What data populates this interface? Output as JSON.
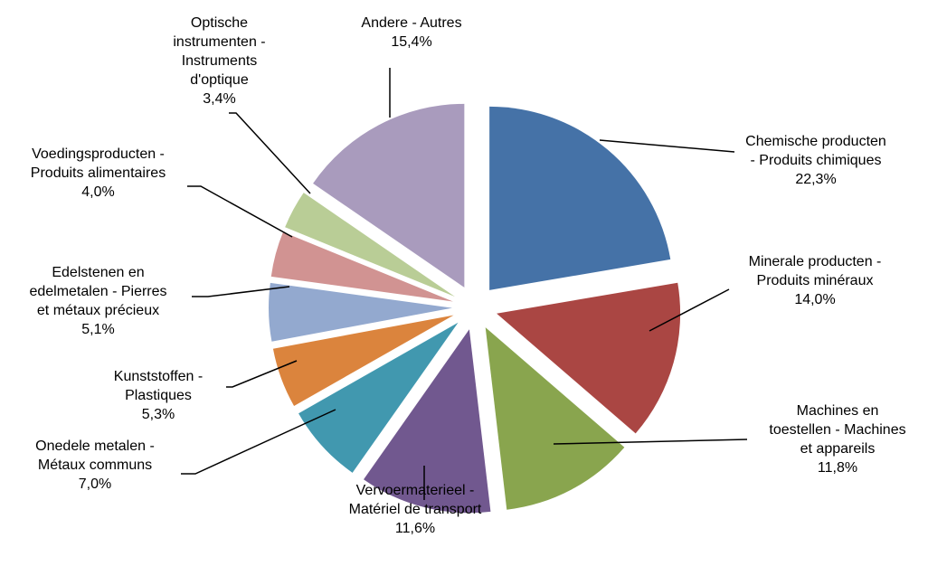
{
  "chart_data": {
    "type": "pie",
    "title": "",
    "legend": "none",
    "series": [
      {
        "name": "",
        "slices": [
          {
            "label_lines": [
              "Chemische producten",
              "- Produits chimiques"
            ],
            "value_label": "22,3%",
            "value": 22.3,
            "color": "#4572A7"
          },
          {
            "label_lines": [
              "Minerale producten -",
              "Produits minéraux"
            ],
            "value_label": "14,0%",
            "value": 14.0,
            "color": "#AA4643"
          },
          {
            "label_lines": [
              "Machines en",
              "toestellen - Machines",
              "et appareils"
            ],
            "value_label": "11,8%",
            "value": 11.8,
            "color": "#89A54E"
          },
          {
            "label_lines": [
              "Vervoermaterieel -",
              "Matériel de transport"
            ],
            "value_label": "11,6%",
            "value": 11.6,
            "color": "#71588F"
          },
          {
            "label_lines": [
              "Onedele metalen -",
              "Métaux communs"
            ],
            "value_label": "7,0%",
            "value": 7.0,
            "color": "#4198AF"
          },
          {
            "label_lines": [
              "Kunststoffen -",
              "Plastiques"
            ],
            "value_label": "5,3%",
            "value": 5.3,
            "color": "#DB843D"
          },
          {
            "label_lines": [
              "Edelstenen en",
              "edelmetalen - Pierres",
              "et métaux précieux"
            ],
            "value_label": "5,1%",
            "value": 5.1,
            "color": "#93A9CF"
          },
          {
            "label_lines": [
              "Voedingsproducten -",
              "Produits alimentaires"
            ],
            "value_label": "4,0%",
            "value": 4.0,
            "color": "#D19392"
          },
          {
            "label_lines": [
              "Optische",
              "instrumenten -",
              "Instruments",
              "d'optique"
            ],
            "value_label": "3,4%",
            "value": 3.4,
            "color": "#B9CD96"
          },
          {
            "label_lines": [
              "Andere - Autres"
            ],
            "value_label": "15,4%",
            "value": 15.4,
            "color": "#A99BBD"
          }
        ]
      }
    ]
  }
}
